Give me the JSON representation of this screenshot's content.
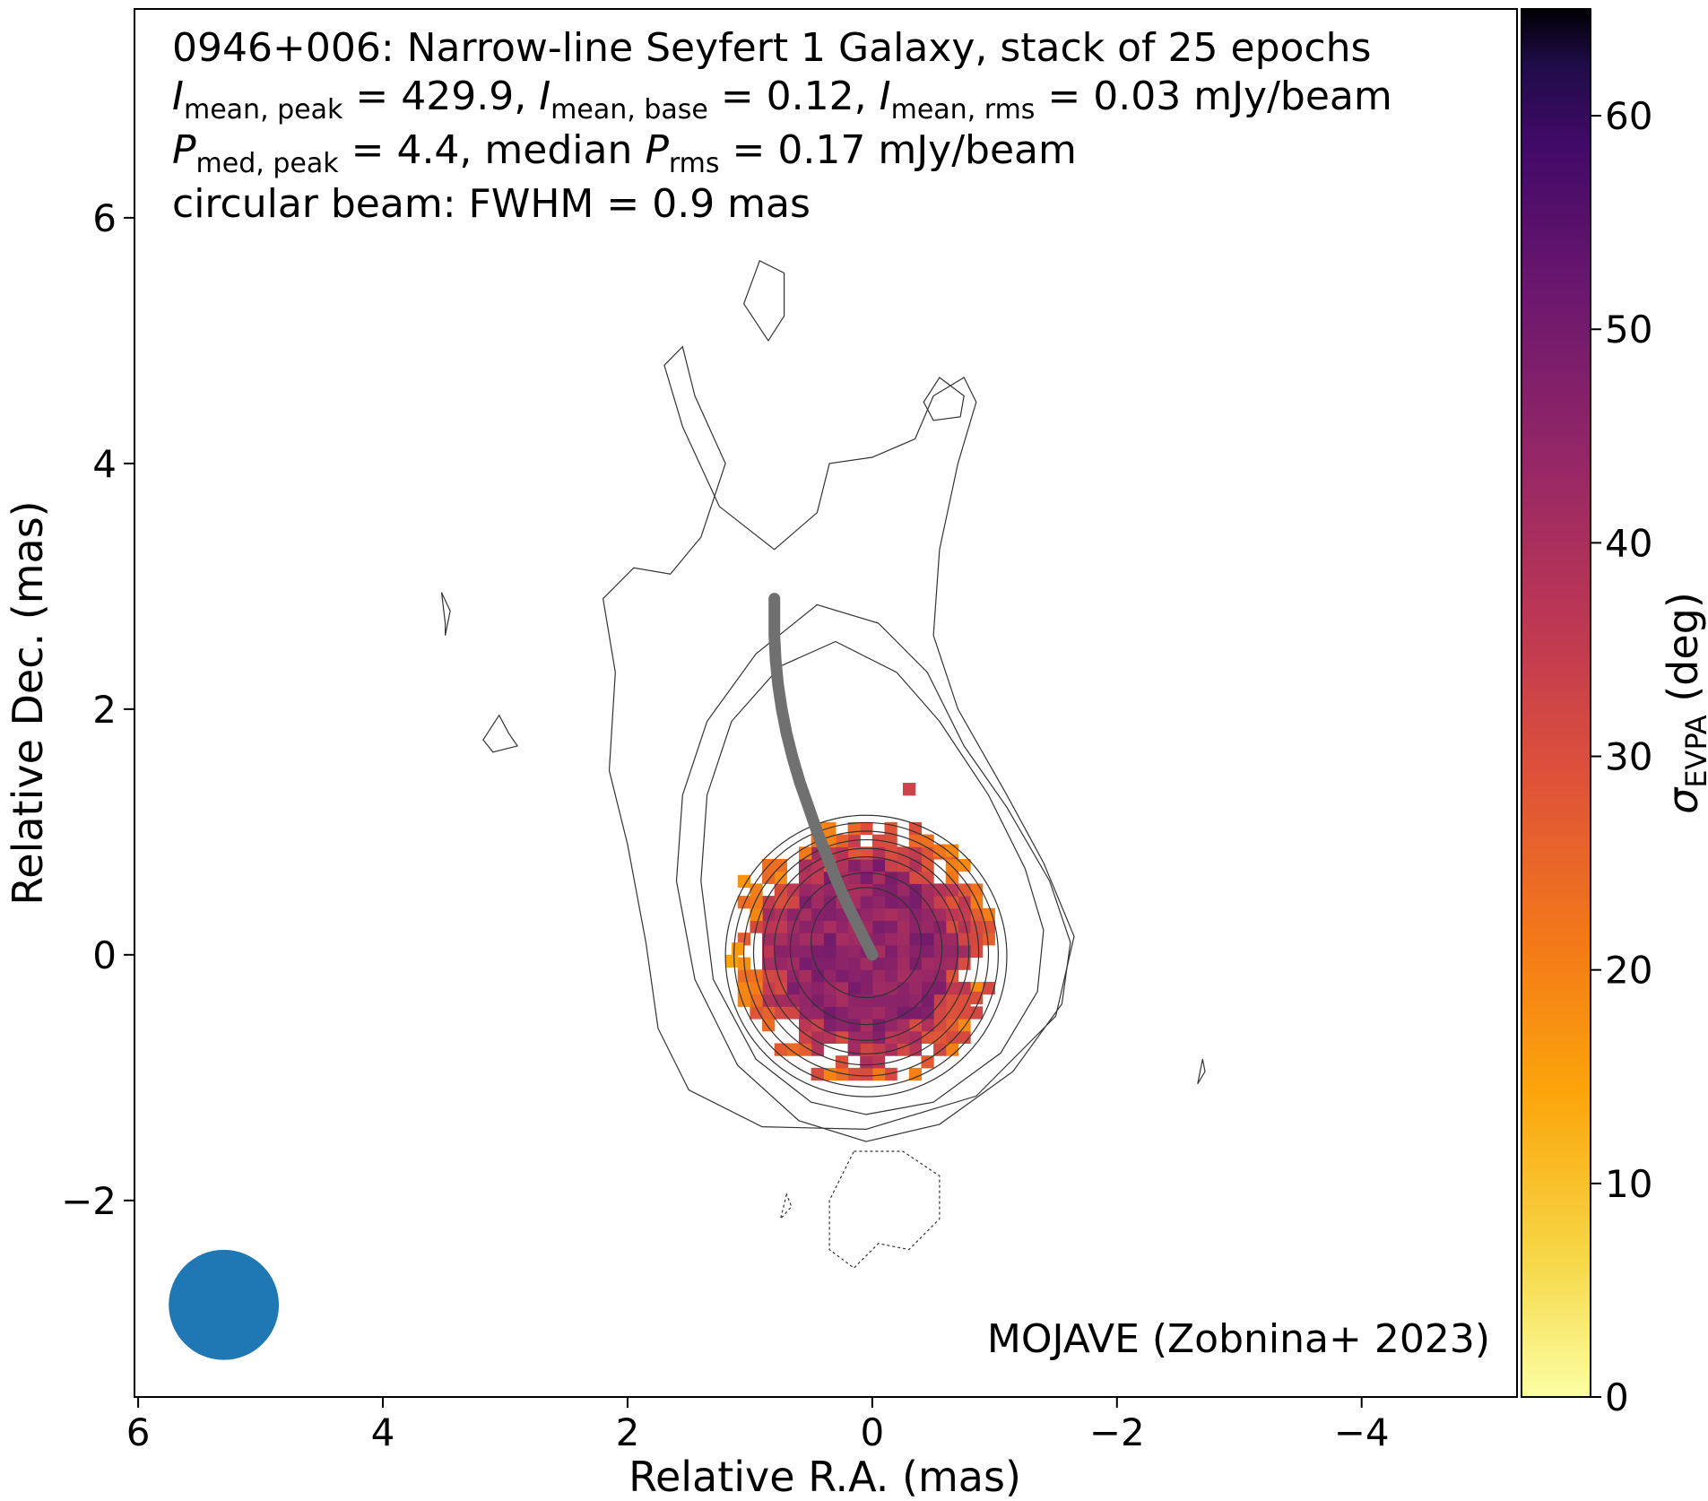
{
  "chart_data": {
    "type": "heatmap",
    "title_lines": [
      "0946+006: Narrow-line Seyfert 1 Galaxy, stack of 25 epochs",
      {
        "parts": [
          {
            "t": "I",
            "i": true
          },
          {
            "t": "mean, peak",
            "sub": true
          },
          {
            "t": " = 429.9, "
          },
          {
            "t": "I",
            "i": true
          },
          {
            "t": "mean, base",
            "sub": true
          },
          {
            "t": " = 0.12, "
          },
          {
            "t": "I",
            "i": true
          },
          {
            "t": "mean, rms",
            "sub": true
          },
          {
            "t": " = 0.03 mJy/beam"
          }
        ]
      },
      {
        "parts": [
          {
            "t": "P",
            "i": true
          },
          {
            "t": "med, peak",
            "sub": true
          },
          {
            "t": " = 4.4, median "
          },
          {
            "t": "P",
            "i": true
          },
          {
            "t": "rms",
            "sub": true
          },
          {
            "t": " = 0.17 mJy/beam"
          }
        ]
      },
      "circular beam: FWHM = 0.9 mas"
    ],
    "credit": "MOJAVE (Zobnina+ 2023)",
    "xlabel": "Relative R.A. (mas)",
    "ylabel": "Relative Dec. (mas)",
    "colorbar_label": {
      "symbol": "σ",
      "sub": "EVPA",
      "unit": " (deg)"
    },
    "x_range": [
      6.03,
      -5.27
    ],
    "y_range": [
      -3.6,
      7.7
    ],
    "x_ticks": [
      6,
      4,
      2,
      0,
      -2,
      -4
    ],
    "y_ticks": [
      6,
      4,
      2,
      0,
      -2
    ],
    "colorbar_range": [
      0,
      65
    ],
    "colorbar_ticks": [
      0,
      10,
      20,
      30,
      40,
      50,
      60
    ],
    "colormap": "inferno_r",
    "beam_fwhm_mas": 0.9,
    "beam_position_mas": [
      5.3,
      -2.85
    ],
    "beam_color": "#1f77b4",
    "contour_color": "#333333",
    "jet_ridge_color": "#707070",
    "jet_ridge": [
      [
        0.0,
        0.0
      ],
      [
        0.1,
        0.2
      ],
      [
        0.2,
        0.4
      ],
      [
        0.29,
        0.6
      ],
      [
        0.37,
        0.8
      ],
      [
        0.45,
        1.0
      ],
      [
        0.52,
        1.2
      ],
      [
        0.59,
        1.4
      ],
      [
        0.65,
        1.6
      ],
      [
        0.7,
        1.8
      ],
      [
        0.74,
        2.0
      ],
      [
        0.77,
        2.2
      ],
      [
        0.79,
        2.4
      ],
      [
        0.8,
        2.6
      ],
      [
        0.8,
        2.9
      ]
    ],
    "contours_circular": [
      {
        "cx": 0.05,
        "cy": 0.1,
        "r": 0.45
      },
      {
        "cx": 0.05,
        "cy": 0.05,
        "r": 0.62
      },
      {
        "cx": 0.05,
        "cy": 0.05,
        "r": 0.75
      },
      {
        "cx": 0.05,
        "cy": 0.03,
        "r": 0.84
      },
      {
        "cx": 0.05,
        "cy": 0.02,
        "r": 0.92
      },
      {
        "cx": 0.05,
        "cy": 0.01,
        "r": 1.0
      },
      {
        "cx": 0.05,
        "cy": 0.0,
        "r": 1.08
      },
      {
        "cx": 0.05,
        "cy": -0.01,
        "r": 1.15
      }
    ],
    "contours_outer": [
      [
        [
          0.05,
          -1.52
        ],
        [
          -0.55,
          -1.38
        ],
        [
          -1.15,
          -0.95
        ],
        [
          -1.55,
          -0.4
        ],
        [
          -1.62,
          0.1
        ],
        [
          -1.45,
          0.6
        ],
        [
          -1.1,
          1.2
        ],
        [
          -0.75,
          1.7
        ],
        [
          -0.45,
          2.3
        ],
        [
          -0.05,
          2.7
        ],
        [
          0.45,
          2.85
        ],
        [
          0.95,
          2.45
        ],
        [
          1.35,
          1.9
        ],
        [
          1.55,
          1.3
        ],
        [
          1.6,
          0.6
        ],
        [
          1.45,
          -0.2
        ],
        [
          1.1,
          -0.9
        ],
        [
          0.6,
          -1.35
        ],
        [
          0.05,
          -1.52
        ]
      ],
      [
        [
          0.05,
          -1.3
        ],
        [
          -0.5,
          -1.2
        ],
        [
          -1.05,
          -0.8
        ],
        [
          -1.35,
          -0.3
        ],
        [
          -1.4,
          0.2
        ],
        [
          -1.25,
          0.7
        ],
        [
          -0.95,
          1.3
        ],
        [
          -0.55,
          1.9
        ],
        [
          -0.2,
          2.3
        ],
        [
          0.3,
          2.55
        ],
        [
          0.75,
          2.35
        ],
        [
          1.15,
          1.9
        ],
        [
          1.35,
          1.3
        ],
        [
          1.4,
          0.6
        ],
        [
          1.3,
          -0.2
        ],
        [
          0.95,
          -0.85
        ],
        [
          0.5,
          -1.2
        ],
        [
          0.05,
          -1.3
        ]
      ],
      [
        [
          0.05,
          -1.42
        ],
        [
          -0.85,
          -1.15
        ],
        [
          -1.5,
          -0.5
        ],
        [
          -1.65,
          0.15
        ],
        [
          -1.4,
          0.75
        ],
        [
          -1.1,
          1.3
        ],
        [
          -0.7,
          2.0
        ],
        [
          -0.5,
          2.6
        ],
        [
          -0.55,
          3.3
        ],
        [
          -0.7,
          4.0
        ],
        [
          -0.85,
          4.5
        ],
        [
          -0.75,
          4.7
        ],
        [
          -0.5,
          4.55
        ],
        [
          -0.35,
          4.2
        ],
        [
          -0.0,
          4.05
        ],
        [
          0.35,
          4.0
        ],
        [
          0.45,
          3.6
        ],
        [
          0.8,
          3.3
        ],
        [
          1.25,
          3.65
        ],
        [
          1.55,
          4.3
        ],
        [
          1.7,
          4.8
        ],
        [
          1.55,
          4.95
        ],
        [
          1.45,
          4.55
        ],
        [
          1.2,
          4.0
        ],
        [
          1.4,
          3.4
        ],
        [
          1.65,
          3.1
        ],
        [
          1.95,
          3.15
        ],
        [
          2.2,
          2.9
        ],
        [
          2.1,
          2.3
        ],
        [
          2.15,
          1.5
        ],
        [
          2.0,
          0.9
        ],
        [
          1.85,
          0.1
        ],
        [
          1.75,
          -0.6
        ],
        [
          1.5,
          -1.1
        ],
        [
          0.9,
          -1.4
        ],
        [
          0.05,
          -1.42
        ]
      ]
    ],
    "contours_islands": [
      [
        [
          0.92,
          5.65
        ],
        [
          1.05,
          5.3
        ],
        [
          0.85,
          5.0
        ],
        [
          0.72,
          5.2
        ],
        [
          0.72,
          5.55
        ],
        [
          0.92,
          5.65
        ]
      ],
      [
        [
          -0.55,
          4.7
        ],
        [
          -0.75,
          4.55
        ],
        [
          -0.72,
          4.38
        ],
        [
          -0.5,
          4.35
        ],
        [
          -0.42,
          4.5
        ],
        [
          -0.55,
          4.7
        ]
      ],
      [
        [
          3.49,
          2.7
        ],
        [
          3.52,
          2.95
        ],
        [
          3.45,
          2.8
        ],
        [
          3.49,
          2.6
        ]
      ],
      [
        [
          3.05,
          1.95
        ],
        [
          3.18,
          1.75
        ],
        [
          3.1,
          1.65
        ],
        [
          2.9,
          1.7
        ],
        [
          2.97,
          1.8
        ],
        [
          3.05,
          1.95
        ]
      ],
      [
        [
          -2.7,
          -0.85
        ],
        [
          -2.66,
          -1.05
        ],
        [
          -2.72,
          -0.95
        ]
      ]
    ],
    "contours_negative": [
      [
        [
          0.15,
          -1.6
        ],
        [
          -0.25,
          -1.6
        ],
        [
          -0.55,
          -1.8
        ],
        [
          -0.55,
          -2.15
        ],
        [
          -0.3,
          -2.4
        ],
        [
          -0.05,
          -2.35
        ],
        [
          0.15,
          -2.55
        ],
        [
          0.35,
          -2.4
        ],
        [
          0.35,
          -2.0
        ],
        [
          0.25,
          -1.8
        ],
        [
          0.15,
          -1.6
        ]
      ],
      [
        [
          0.7,
          -1.95
        ],
        [
          0.75,
          -2.15
        ],
        [
          0.66,
          -2.05
        ],
        [
          0.7,
          -1.95
        ]
      ]
    ],
    "sigma_evpa_map": {
      "center": [
        0.05,
        0.03
      ],
      "radius_mas": 0.96,
      "description": "core sigma_EVPA ~ 40-50 deg, rim 25-35 deg, a few 15-20 deg pixels",
      "pixel_size_mas": 0.1
    }
  }
}
